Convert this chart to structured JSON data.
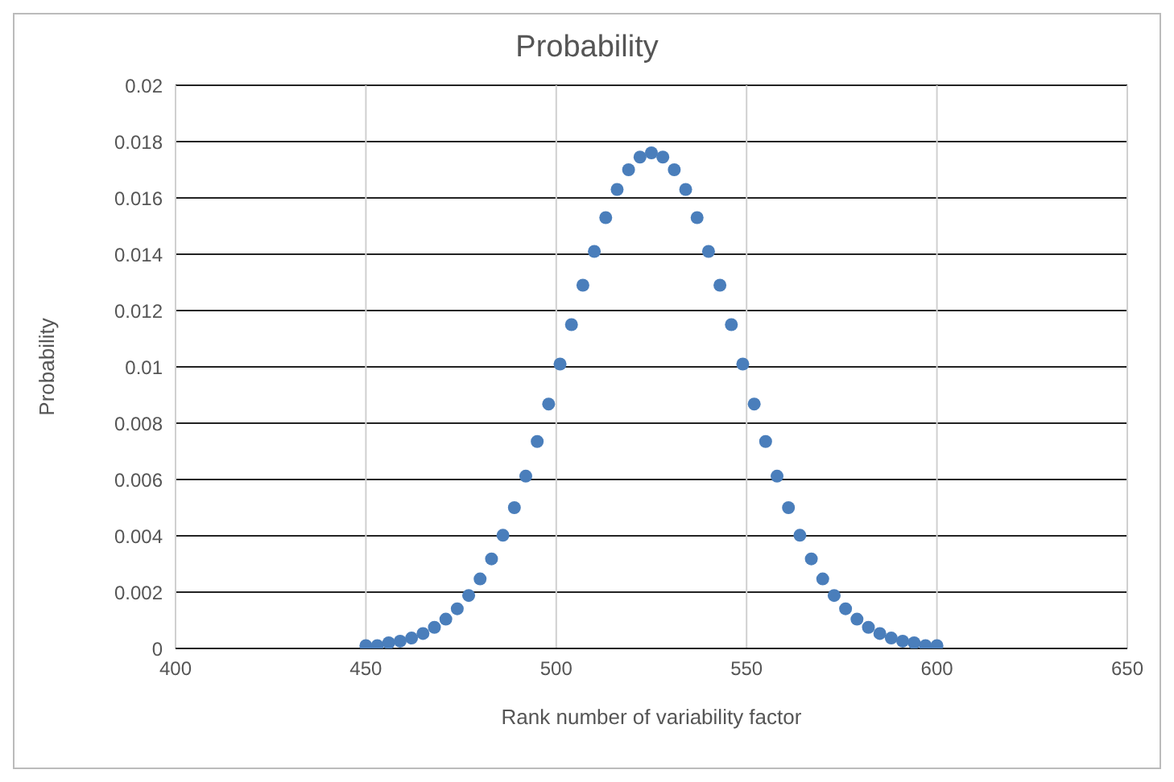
{
  "chart_data": {
    "type": "scatter",
    "title": "Probability",
    "xlabel": "Rank number of variability factor",
    "ylabel": "Probability",
    "x": [
      450,
      453,
      456,
      459,
      462,
      465,
      468,
      471,
      474,
      477,
      480,
      483,
      486,
      489,
      492,
      495,
      498,
      501,
      504,
      507,
      510,
      513,
      516,
      519,
      522,
      525,
      528,
      531,
      534,
      537,
      540,
      543,
      546,
      549,
      552,
      555,
      558,
      561,
      564,
      567,
      570,
      573,
      576,
      579,
      582,
      585,
      588,
      591,
      594,
      597,
      600
    ],
    "series": [
      {
        "color": "#4a7ebb",
        "values": [
          0.0001,
          0.0001,
          0.0002,
          0.00026,
          0.00037,
          0.00053,
          0.00075,
          0.00104,
          0.00141,
          0.00188,
          0.00247,
          0.00318,
          0.00402,
          0.005,
          0.00612,
          0.00735,
          0.00868,
          0.0101,
          0.0115,
          0.0129,
          0.0141,
          0.0153,
          0.0163,
          0.017,
          0.01745,
          0.0176,
          0.01745,
          0.017,
          0.0163,
          0.0153,
          0.0141,
          0.0129,
          0.0115,
          0.0101,
          0.00868,
          0.00735,
          0.00612,
          0.005,
          0.00402,
          0.00318,
          0.00247,
          0.00188,
          0.00141,
          0.00104,
          0.00075,
          0.00053,
          0.00037,
          0.00026,
          0.0002,
          0.0001,
          0.0001
        ]
      }
    ],
    "xlim": [
      400,
      650
    ],
    "xticks": [
      400,
      450,
      500,
      550,
      600,
      650
    ],
    "ylim": [
      0,
      0.02
    ],
    "yticks": [
      0,
      0.002,
      0.004,
      0.006,
      0.008,
      0.01,
      0.012,
      0.014,
      0.016,
      0.018,
      0.02
    ],
    "grid": true,
    "marker": "circle",
    "legend": false
  }
}
